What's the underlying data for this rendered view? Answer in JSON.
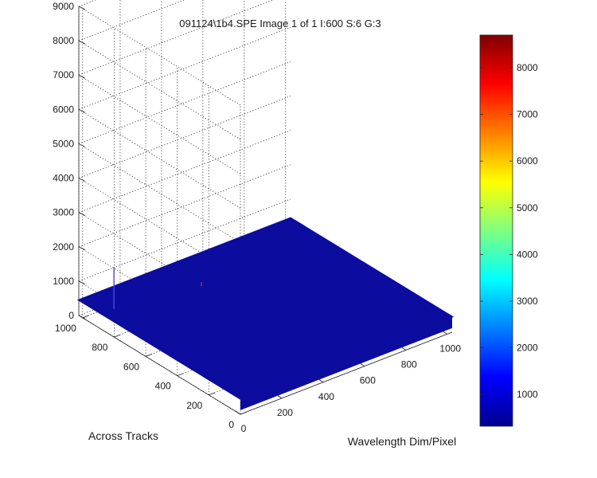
{
  "chart_data": {
    "type": "surface3d",
    "title": "091124\\1b4.SPE  Image 1 of 1  I:600  S:6  G:3",
    "xlabel": "Wavelength Dim/Pixel",
    "ylabel": "Across Tracks",
    "zlabel": "",
    "xlim": [
      0,
      1024
    ],
    "ylim": [
      0,
      1024
    ],
    "zlim": [
      0,
      9000
    ],
    "x_ticks": [
      {
        "v": 0,
        "label": "0"
      },
      {
        "v": 200,
        "label": "200"
      },
      {
        "v": 400,
        "label": "400"
      },
      {
        "v": 600,
        "label": "600"
      },
      {
        "v": 800,
        "label": "800"
      },
      {
        "v": 1000,
        "label": "1000"
      }
    ],
    "y_ticks": [
      {
        "v": 0,
        "label": "0"
      },
      {
        "v": 200,
        "label": "200"
      },
      {
        "v": 400,
        "label": "400"
      },
      {
        "v": 600,
        "label": "600"
      },
      {
        "v": 800,
        "label": "800"
      },
      {
        "v": 1000,
        "label": "1000"
      }
    ],
    "z_ticks": [
      {
        "v": 0,
        "label": "0"
      },
      {
        "v": 1000,
        "label": "1000"
      },
      {
        "v": 2000,
        "label": "2000"
      },
      {
        "v": 3000,
        "label": "3000"
      },
      {
        "v": 4000,
        "label": "4000"
      },
      {
        "v": 5000,
        "label": "5000"
      },
      {
        "v": 6000,
        "label": "6000"
      },
      {
        "v": 7000,
        "label": "7000"
      },
      {
        "v": 8000,
        "label": "8000"
      },
      {
        "v": 9000,
        "label": "9000"
      }
    ],
    "grid": true,
    "surface_baseline": 450,
    "surface_color": "#0c0c9e",
    "spikes": [
      {
        "x": 60,
        "y": 880,
        "z": 1200,
        "color": "#4a4ae0"
      },
      {
        "x": 430,
        "y": 810,
        "z": 120,
        "color": "#c03020"
      }
    ],
    "colorbar": {
      "colormap": "jet",
      "range": [
        320,
        8700
      ],
      "ticks": [
        {
          "v": 1000,
          "label": "1000"
        },
        {
          "v": 2000,
          "label": "2000"
        },
        {
          "v": 3000,
          "label": "3000"
        },
        {
          "v": 4000,
          "label": "4000"
        },
        {
          "v": 5000,
          "label": "5000"
        },
        {
          "v": 6000,
          "label": "6000"
        },
        {
          "v": 7000,
          "label": "7000"
        },
        {
          "v": 8000,
          "label": "8000"
        }
      ]
    }
  }
}
